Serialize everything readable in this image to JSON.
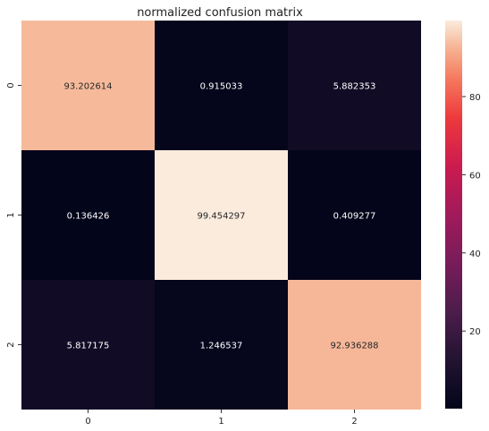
{
  "chart_data": {
    "type": "heatmap",
    "title": "normalized confusion matrix",
    "x_categories": [
      "0",
      "1",
      "2"
    ],
    "y_categories": [
      "0",
      "1",
      "2"
    ],
    "values": [
      [
        93.202614,
        0.915033,
        5.882353
      ],
      [
        0.136426,
        99.454297,
        0.409277
      ],
      [
        5.817175,
        1.246537,
        92.936288
      ]
    ],
    "cell_labels": [
      [
        "93.202614",
        "0.915033",
        "5.882353"
      ],
      [
        "0.136426",
        "99.454297",
        "0.409277"
      ],
      [
        "5.817175",
        "1.246537",
        "92.936288"
      ]
    ],
    "colorbar": {
      "range": [
        0.136426,
        99.454297
      ],
      "ticks": [
        20,
        40,
        60,
        80
      ],
      "tick_labels": [
        "20",
        "40",
        "60",
        "80"
      ],
      "colormap": "rocket"
    }
  }
}
